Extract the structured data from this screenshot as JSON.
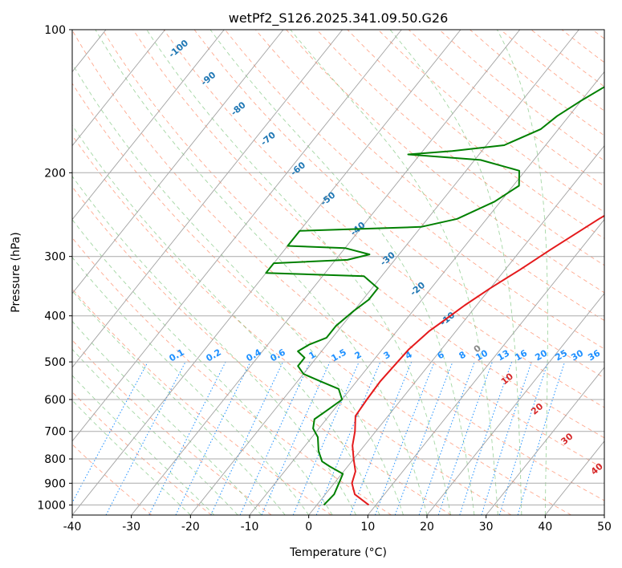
{
  "chart_data": {
    "type": "line",
    "title": "wetPf2_S126.2025.341.09.50.G26",
    "xlabel": "Temperature (°C)",
    "ylabel": "Pressure (hPa)",
    "xlim": [
      -40,
      50
    ],
    "ylim": [
      1050,
      100
    ],
    "y_scale": "log",
    "x_ticks": [
      "-40",
      "-30",
      "-20",
      "-10",
      "0",
      "10",
      "20",
      "30",
      "40",
      "50"
    ],
    "y_ticks": [
      "100",
      "200",
      "300",
      "400",
      "500",
      "600",
      "700",
      "800",
      "900",
      "1000"
    ],
    "grid": true,
    "series": [
      {
        "color": "#e41a1c",
        "data": [
          [
            8.8,
            1000
          ],
          [
            5,
            950
          ],
          [
            3,
            900
          ],
          [
            2,
            850
          ],
          [
            0,
            800
          ],
          [
            -2,
            750
          ],
          [
            -3.5,
            700
          ],
          [
            -5.5,
            650
          ],
          [
            -5.8,
            600
          ],
          [
            -6,
            550
          ],
          [
            -5.7,
            500
          ],
          [
            -5.5,
            470
          ],
          [
            -5,
            450
          ],
          [
            -4.5,
            430
          ],
          [
            -3.5,
            410
          ],
          [
            -2,
            380
          ],
          [
            0,
            350
          ],
          [
            2.5,
            320
          ],
          [
            5,
            290
          ],
          [
            9,
            250
          ],
          [
            13,
            220
          ],
          [
            17,
            195
          ],
          [
            20,
            175
          ],
          [
            22,
            155
          ],
          [
            24,
            135
          ],
          [
            26.5,
            118
          ],
          [
            29,
            106
          ],
          [
            30.5,
            100
          ]
        ]
      },
      {
        "color": "#008000",
        "data": [
          [
            1.2,
            1000
          ],
          [
            1.5,
            950
          ],
          [
            0.8,
            900
          ],
          [
            0.2,
            860
          ],
          [
            -3,
            830
          ],
          [
            -5,
            810
          ],
          [
            -7,
            770
          ],
          [
            -9,
            720
          ],
          [
            -11,
            690
          ],
          [
            -12,
            660
          ],
          [
            -11,
            630
          ],
          [
            -10,
            600
          ],
          [
            -12,
            570
          ],
          [
            -16,
            550
          ],
          [
            -20,
            530
          ],
          [
            -22,
            510
          ],
          [
            -22,
            490
          ],
          [
            -24,
            475
          ],
          [
            -23,
            460
          ],
          [
            -21,
            445
          ],
          [
            -21,
            420
          ],
          [
            -20,
            390
          ],
          [
            -19,
            370
          ],
          [
            -19,
            350
          ],
          [
            -23,
            330
          ],
          [
            -40,
            325
          ],
          [
            -40,
            310
          ],
          [
            -28,
            305
          ],
          [
            -25,
            297
          ],
          [
            -30,
            288
          ],
          [
            -40,
            285
          ],
          [
            -40,
            265
          ],
          [
            -20,
            260
          ],
          [
            -15,
            250
          ],
          [
            -11,
            230
          ],
          [
            -9,
            213
          ],
          [
            -11,
            198
          ],
          [
            -19,
            188
          ],
          [
            -32,
            183
          ],
          [
            -25,
            180
          ],
          [
            -17,
            175
          ],
          [
            -13,
            162
          ],
          [
            -12,
            152
          ],
          [
            -10,
            141
          ],
          [
            -7,
            128
          ],
          [
            -4,
            116
          ],
          [
            -1,
            105
          ],
          [
            -0.5,
            100
          ]
        ]
      }
    ],
    "isotherm_labels": [
      "-100",
      "-90",
      "-80",
      "-70",
      "-60",
      "-50",
      "-40",
      "-30",
      "-20",
      "-10",
      "0",
      "10",
      "20",
      "30",
      "40"
    ],
    "mixing_ratio_labels": [
      "0.1",
      "0.2",
      "0.4",
      "0.6",
      "1",
      "1.5",
      "2",
      "3",
      "4",
      "6",
      "8",
      "10",
      "13",
      "16",
      "20",
      "25",
      "30",
      "36"
    ],
    "colors": {
      "temperature": "#e41a1c",
      "dewpoint": "#008000",
      "isotherm_label_blue": "#1f77b4",
      "isotherm_label_red": "#d62728",
      "isotherm_label_zero": "#888888",
      "mixing_ratio": "#1e90ff",
      "dry_adiabat": "#ff8c69",
      "moist_adiabat": "#66bb66",
      "skew_isotherm": "#999999"
    }
  }
}
